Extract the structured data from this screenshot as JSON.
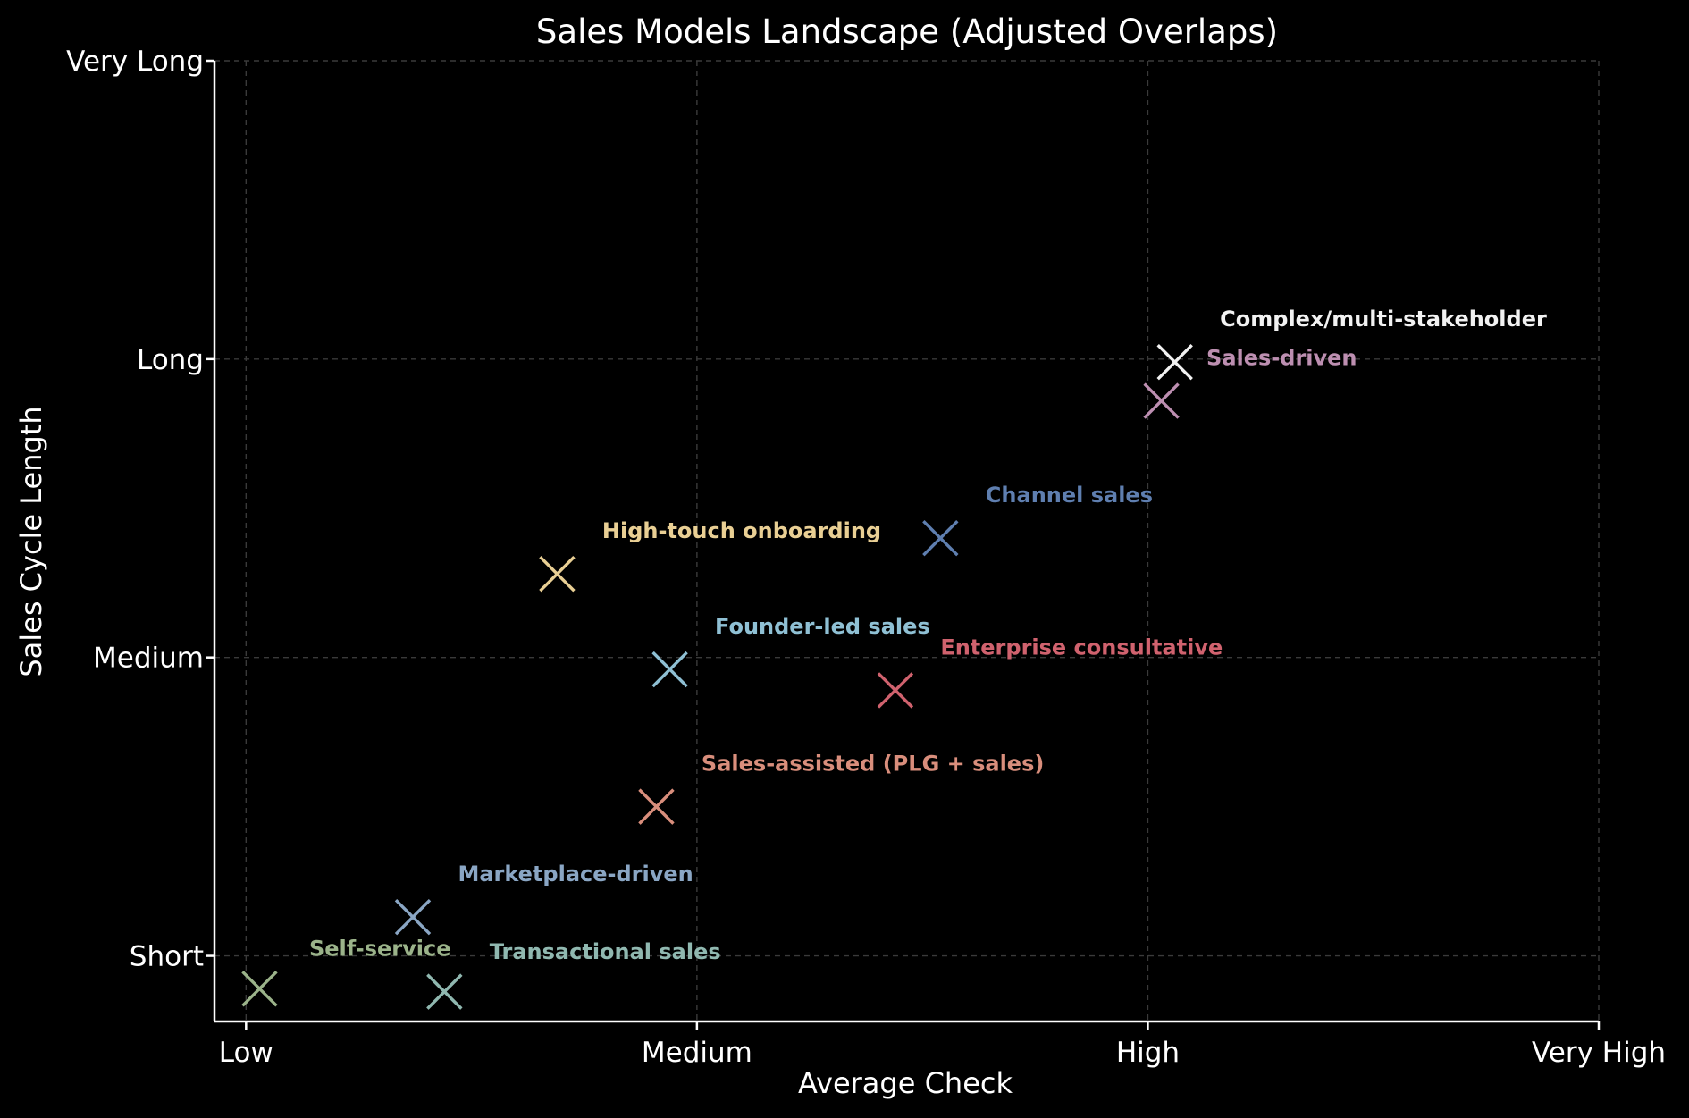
{
  "chart_data": {
    "type": "scatter",
    "title": "Sales Models Landscape (Adjusted Overlaps)",
    "xlabel": "Average Check",
    "ylabel": "Sales Cycle Length",
    "xlim": [
      -0.07,
      3.0
    ],
    "ylim": [
      -0.22,
      3.0
    ],
    "x_ticks": [
      {
        "value": 0,
        "label": "Low"
      },
      {
        "value": 1,
        "label": "Medium"
      },
      {
        "value": 2,
        "label": "High"
      },
      {
        "value": 3,
        "label": "Very High"
      }
    ],
    "y_ticks": [
      {
        "value": 0,
        "label": "Short"
      },
      {
        "value": 1,
        "label": "Medium"
      },
      {
        "value": 2,
        "label": "Long"
      },
      {
        "value": 3,
        "label": "Very Long"
      }
    ],
    "grid": true,
    "marker": "x",
    "points": [
      {
        "label": "Self-service",
        "x": 0.03,
        "y": -0.11,
        "color": "#9bb38a",
        "label_x": 0.14,
        "label_y": 0.0
      },
      {
        "label": "Transactional sales",
        "x": 0.44,
        "y": -0.12,
        "color": "#90b8b0",
        "label_x": 0.54,
        "label_y": -0.01
      },
      {
        "label": "Marketplace-driven",
        "x": 0.37,
        "y": 0.13,
        "color": "#8aa6c4",
        "label_x": 0.47,
        "label_y": 0.25
      },
      {
        "label": "Sales-assisted (PLG + sales)",
        "x": 0.91,
        "y": 0.5,
        "color": "#d98e7c",
        "label_x": 1.01,
        "label_y": 0.62
      },
      {
        "label": "Founder-led sales",
        "x": 0.94,
        "y": 0.96,
        "color": "#8fc0d4",
        "label_x": 1.04,
        "label_y": 1.08
      },
      {
        "label": "Enterprise consultative",
        "x": 1.44,
        "y": 0.89,
        "color": "#d0626e",
        "label_x": 1.54,
        "label_y": 1.01
      },
      {
        "label": "High-touch onboarding",
        "x": 0.69,
        "y": 1.28,
        "color": "#e9cf94",
        "label_x": 0.79,
        "label_y": 1.4
      },
      {
        "label": "Channel sales",
        "x": 1.54,
        "y": 1.4,
        "color": "#5f7fb0",
        "label_x": 1.64,
        "label_y": 1.52
      },
      {
        "label": "Sales-driven",
        "x": 2.03,
        "y": 1.86,
        "color": "#bd8fb1",
        "label_x": 2.13,
        "label_y": 1.98
      },
      {
        "label": "Complex/multi-stakeholder",
        "x": 2.06,
        "y": 1.99,
        "color": "#f2f2f2",
        "label_x": 2.16,
        "label_y": 2.11
      }
    ]
  }
}
